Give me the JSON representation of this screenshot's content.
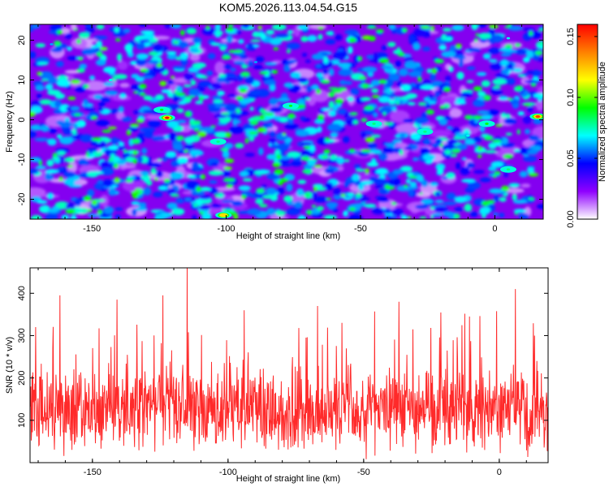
{
  "chart_data": [
    {
      "type": "heatmap",
      "title": "KOM5.2026.113.04.54.G15",
      "xlabel": "Height of straight line (km)",
      "ylabel": "Frequency (Hz)",
      "xlim": [
        -173,
        18
      ],
      "ylim": [
        -25,
        24
      ],
      "xticks": [
        -150,
        -100,
        -50,
        0
      ],
      "yticks": [
        -20,
        -10,
        0,
        10,
        20
      ],
      "colorbar": {
        "label": "Normalized spectral amplitude",
        "range": [
          0.0,
          0.16
        ],
        "ticks": [
          "0.00",
          "0.05",
          "0.10",
          "0.15"
        ],
        "tick_values": [
          0.0,
          0.05,
          0.1,
          0.15
        ],
        "colormap": [
          "#ffffff",
          "#8f00ff",
          "#0000ff",
          "#00ffff",
          "#00ff00",
          "#ffff00",
          "#ff8000",
          "#ff0000"
        ]
      },
      "hotspots": [
        {
          "x": -122,
          "y": 0.5,
          "v": 0.16
        },
        {
          "x": 16,
          "y": 0.8,
          "v": 0.15
        },
        {
          "x": -101,
          "y": -24,
          "v": 0.12
        },
        {
          "x": -124,
          "y": 2.5,
          "v": 0.09
        },
        {
          "x": -76,
          "y": 3.5,
          "v": 0.09
        },
        {
          "x": -103,
          "y": -5.5,
          "v": 0.08
        },
        {
          "x": -45,
          "y": -1.0,
          "v": 0.08
        },
        {
          "x": -3,
          "y": -1.0,
          "v": 0.09
        },
        {
          "x": 5,
          "y": -12.5,
          "v": 0.08
        },
        {
          "x": -26,
          "y": -3.0,
          "v": 0.08
        },
        {
          "x": 5,
          "y": 20.5,
          "v": 0.07
        },
        {
          "x": -143,
          "y": 10.0,
          "v": 0.07
        },
        {
          "x": -89,
          "y": 14.5,
          "v": 0.06
        },
        {
          "x": -165,
          "y": 19.0,
          "v": 0.06
        },
        {
          "x": -10,
          "y": -4.0,
          "v": 0.07
        }
      ]
    },
    {
      "type": "line",
      "xlabel": "Height of straight line (km)",
      "ylabel": "SNR (10 * v/v)",
      "xlim": [
        -173,
        18
      ],
      "ylim": [
        0,
        460
      ],
      "xticks": [
        -150,
        -100,
        -50,
        0
      ],
      "yticks": [
        100,
        200,
        300,
        400
      ],
      "series": [
        {
          "name": "SNR",
          "color": "#ff2a2a",
          "summary": {
            "baseline": 120,
            "spread": 90,
            "max": 460
          },
          "peaks": [
            {
              "x": -115,
              "y": 460
            },
            {
              "x": -162,
              "y": 395
            },
            {
              "x": -124,
              "y": 395
            },
            {
              "x": 6,
              "y": 410
            },
            {
              "x": -37,
              "y": 380
            },
            {
              "x": -141,
              "y": 385
            },
            {
              "x": -67,
              "y": 370
            },
            {
              "x": -94,
              "y": 360
            },
            {
              "x": -11,
              "y": 345
            },
            {
              "x": -171,
              "y": 320
            },
            {
              "x": 13,
              "y": 300
            },
            {
              "x": -58,
              "y": 330
            }
          ]
        }
      ]
    }
  ]
}
